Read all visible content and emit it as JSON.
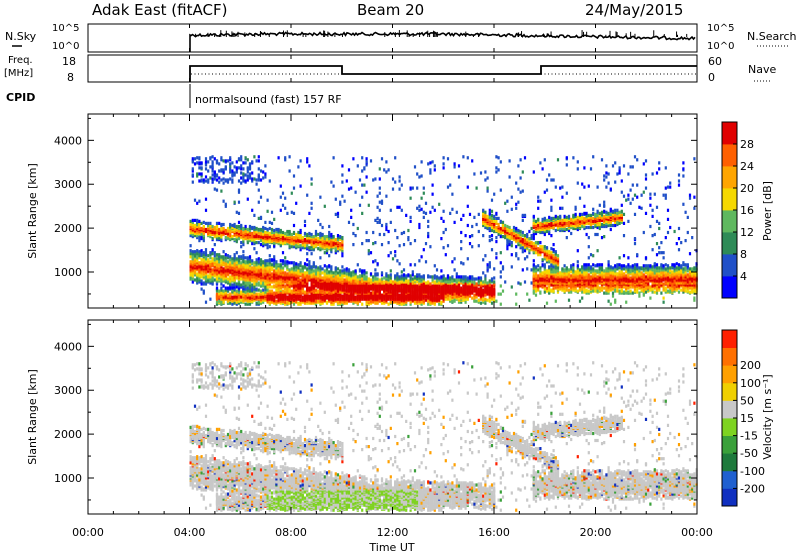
{
  "header": {
    "station": "Adak East (fitACF)",
    "beam": "Beam 20",
    "date": "24/May/2015"
  },
  "params": {
    "nsky_label": "N.Sky",
    "nsky_ticks": [
      "10^5",
      "10^0"
    ],
    "nsearch_label": "N.Search",
    "freq_label_line1": "Freq.",
    "freq_label_line2": "[MHz]",
    "freq_ticks": [
      "18",
      "8"
    ],
    "nave_label": "Nave",
    "nave_ticks": [
      "60",
      "0"
    ],
    "cpid_label": "CPID",
    "cpid_text": "normalsound (fast) 157 RF"
  },
  "axes": {
    "time_ticks": [
      "00:00",
      "04:00",
      "08:00",
      "12:00",
      "16:00",
      "20:00",
      "00:00"
    ],
    "xlabel": "Time UT",
    "ylabel": "Slant Range [km]",
    "range_ticks": [
      "1000",
      "2000",
      "3000",
      "4000"
    ]
  },
  "chart_data": [
    {
      "type": "heatmap",
      "title": "",
      "xlabel": "Time UT",
      "ylabel": "Slant Range [km]",
      "xlim_hours": [
        0,
        24
      ],
      "ylim_km": [
        180,
        4600
      ],
      "colorbar_label": "Power [dB]",
      "colorbar_ticks": [
        "4",
        "8",
        "12",
        "16",
        "20",
        "24",
        "28"
      ],
      "colorbar_colors": [
        "#0000ff",
        "#2050c8",
        "#2e8b57",
        "#5fb85f",
        "#f5d800",
        "#ffa500",
        "#ff6000",
        "#e00000"
      ]
    },
    {
      "type": "heatmap",
      "title": "",
      "xlabel": "Time UT",
      "ylabel": "Slant Range [km]",
      "xlim_hours": [
        0,
        24
      ],
      "ylim_km": [
        180,
        4600
      ],
      "colorbar_label": "Velocity [m s⁻¹]",
      "colorbar_ticks": [
        "200",
        "100",
        "50",
        "15",
        "-15",
        "-50",
        "-100",
        "-200"
      ],
      "colorbar_colors": [
        "#1030c0",
        "#2060d0",
        "#1e7a3c",
        "#3aa03a",
        "#7ed321",
        "#c8c8c8",
        "#f0d000",
        "#ffa000",
        "#ff7000",
        "#ff2000"
      ]
    }
  ]
}
